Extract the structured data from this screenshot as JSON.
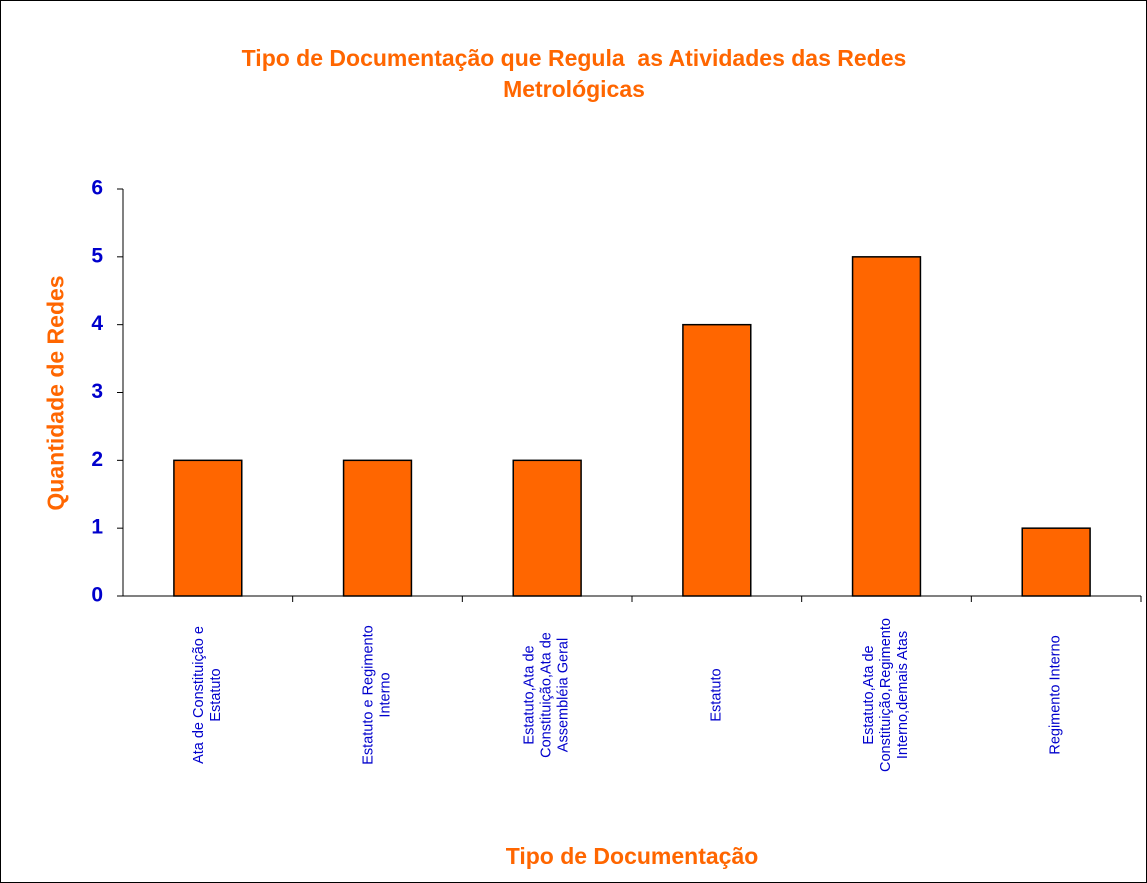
{
  "chart_data": {
    "type": "bar",
    "title": "Tipo de Documentação que Regula  as Atividades das Redes Metrológicas",
    "x_label": "Tipo de Documentação",
    "y_label": "Quantidade de Redes",
    "categories": [
      "Ata de Constituição e Estatuto",
      "Estatuto e Regimento Interno",
      "Estatuto,Ata de Constituição,Ata de Assembléia Geral",
      "Estatuto",
      "Estatuto,Ata de Constituição,Regimento Interno,demais Atas",
      "Regimento Interno"
    ],
    "values": [
      2,
      2,
      2,
      4,
      5,
      1
    ],
    "color": "#ff6600",
    "ylim": [
      0,
      6
    ],
    "yticks": [
      0,
      1,
      2,
      3,
      4,
      5,
      6
    ],
    "grid": false
  }
}
